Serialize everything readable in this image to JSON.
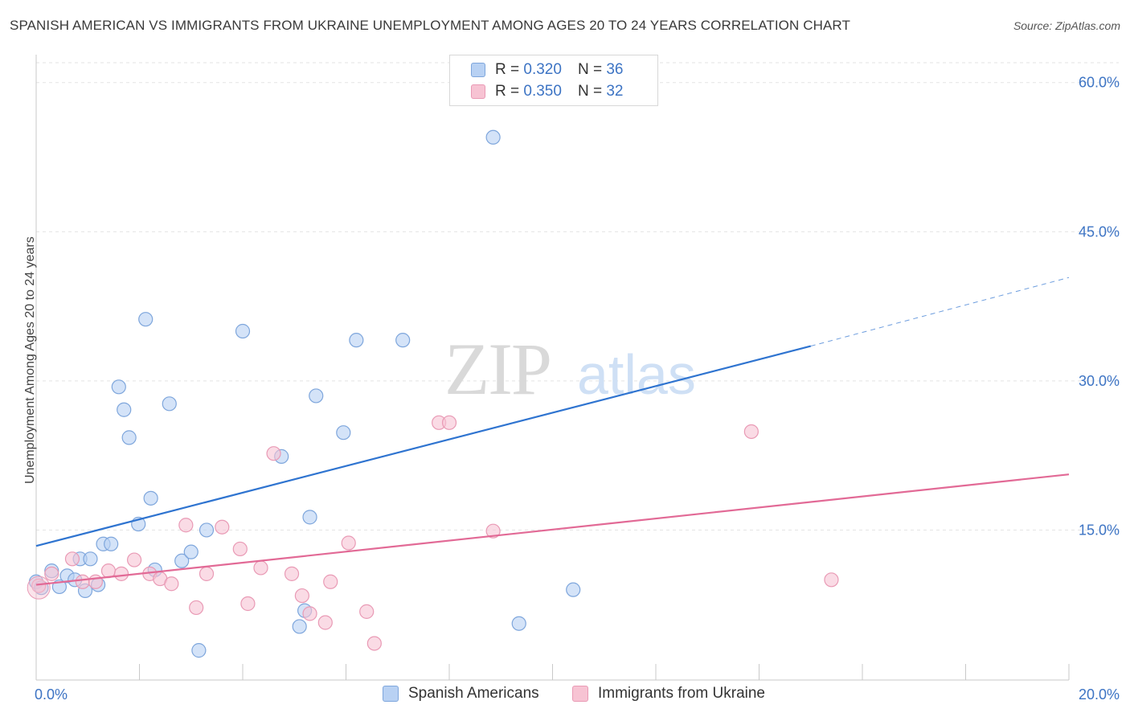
{
  "title": "SPANISH AMERICAN VS IMMIGRANTS FROM UKRAINE UNEMPLOYMENT AMONG AGES 20 TO 24 YEARS CORRELATION CHART",
  "source": "Source: ZipAtlas.com",
  "watermark": {
    "zip": "ZIP",
    "atlas": "atlas"
  },
  "legend_top": [
    {
      "r_label": "R =",
      "r_value": "0.320",
      "n_label": "N =",
      "n_value": "36"
    },
    {
      "r_label": "R =",
      "r_value": "0.350",
      "n_label": "N =",
      "n_value": "32"
    }
  ],
  "colors": {
    "blue_fill": "#b8d1f3",
    "blue_stroke": "#7ea6dc",
    "blue_line": "#2f74d0",
    "pink_fill": "#f7c3d3",
    "pink_stroke": "#e99ab5",
    "pink_line": "#e26a96",
    "tick_text": "#3d74c4",
    "grid": "#e3e3e3"
  },
  "chart_data": {
    "type": "scatter",
    "title": "SPANISH AMERICAN VS IMMIGRANTS FROM UKRAINE UNEMPLOYMENT AMONG AGES 20 TO 24 YEARS CORRELATION CHART",
    "xlabel": "",
    "ylabel": "Unemployment Among Ages 20 to 24 years",
    "xlim": [
      0,
      20
    ],
    "ylim": [
      0,
      62
    ],
    "x_tick_labels": [
      "0.0%",
      "20.0%"
    ],
    "y_ticks": [
      15,
      30,
      45,
      60
    ],
    "y_tick_labels": [
      "15.0%",
      "30.0%",
      "45.0%",
      "60.0%"
    ],
    "grid": true,
    "legend_placement": "bottom",
    "series": [
      {
        "name": "Spanish Americans",
        "r": 0.32,
        "n": 36,
        "trend": {
          "x0": 0,
          "y0": 13.4,
          "x1": 15,
          "y1": 33.5,
          "dashed_to_x": 20,
          "dashed_to_y": 40.4
        },
        "points": [
          [
            0.0,
            9.8
          ],
          [
            0.1,
            9.2
          ],
          [
            0.3,
            10.9
          ],
          [
            0.45,
            9.3
          ],
          [
            0.6,
            10.4
          ],
          [
            0.75,
            10.0
          ],
          [
            0.85,
            12.1
          ],
          [
            0.95,
            8.9
          ],
          [
            1.05,
            12.1
          ],
          [
            1.2,
            9.5
          ],
          [
            1.3,
            13.6
          ],
          [
            1.45,
            13.6
          ],
          [
            1.6,
            29.4
          ],
          [
            1.7,
            27.1
          ],
          [
            1.8,
            24.3
          ],
          [
            1.98,
            15.6
          ],
          [
            2.12,
            36.2
          ],
          [
            2.22,
            18.2
          ],
          [
            2.3,
            11.0
          ],
          [
            2.58,
            27.7
          ],
          [
            2.82,
            11.9
          ],
          [
            3.0,
            12.8
          ],
          [
            3.15,
            2.9
          ],
          [
            3.3,
            15.0
          ],
          [
            4.0,
            35.0
          ],
          [
            4.75,
            22.4
          ],
          [
            5.1,
            5.3
          ],
          [
            5.2,
            6.9
          ],
          [
            5.3,
            16.3
          ],
          [
            5.42,
            28.5
          ],
          [
            5.95,
            24.8
          ],
          [
            6.2,
            34.1
          ],
          [
            7.1,
            34.1
          ],
          [
            8.85,
            54.5
          ],
          [
            9.35,
            5.6
          ],
          [
            10.4,
            9.0
          ]
        ]
      },
      {
        "name": "Immigrants from Ukraine",
        "r": 0.35,
        "n": 32,
        "trend": {
          "x0": 0,
          "y0": 9.5,
          "x1": 20,
          "y1": 20.6
        },
        "points": [
          [
            0.05,
            9.4
          ],
          [
            0.3,
            10.6
          ],
          [
            0.7,
            12.1
          ],
          [
            0.9,
            9.8
          ],
          [
            1.15,
            9.8
          ],
          [
            1.4,
            10.9
          ],
          [
            1.65,
            10.6
          ],
          [
            1.9,
            12.0
          ],
          [
            2.2,
            10.6
          ],
          [
            2.4,
            10.1
          ],
          [
            2.62,
            9.6
          ],
          [
            2.9,
            15.5
          ],
          [
            3.1,
            7.2
          ],
          [
            3.3,
            10.6
          ],
          [
            3.6,
            15.3
          ],
          [
            3.95,
            13.1
          ],
          [
            4.1,
            7.6
          ],
          [
            4.35,
            11.2
          ],
          [
            4.6,
            22.7
          ],
          [
            4.95,
            10.6
          ],
          [
            5.15,
            8.4
          ],
          [
            5.3,
            6.6
          ],
          [
            5.6,
            5.7
          ],
          [
            5.7,
            9.8
          ],
          [
            6.05,
            13.7
          ],
          [
            6.4,
            6.8
          ],
          [
            6.55,
            3.6
          ],
          [
            7.8,
            25.8
          ],
          [
            8.0,
            25.8
          ],
          [
            8.85,
            14.9
          ],
          [
            13.85,
            24.9
          ],
          [
            15.4,
            10.0
          ]
        ]
      }
    ]
  }
}
